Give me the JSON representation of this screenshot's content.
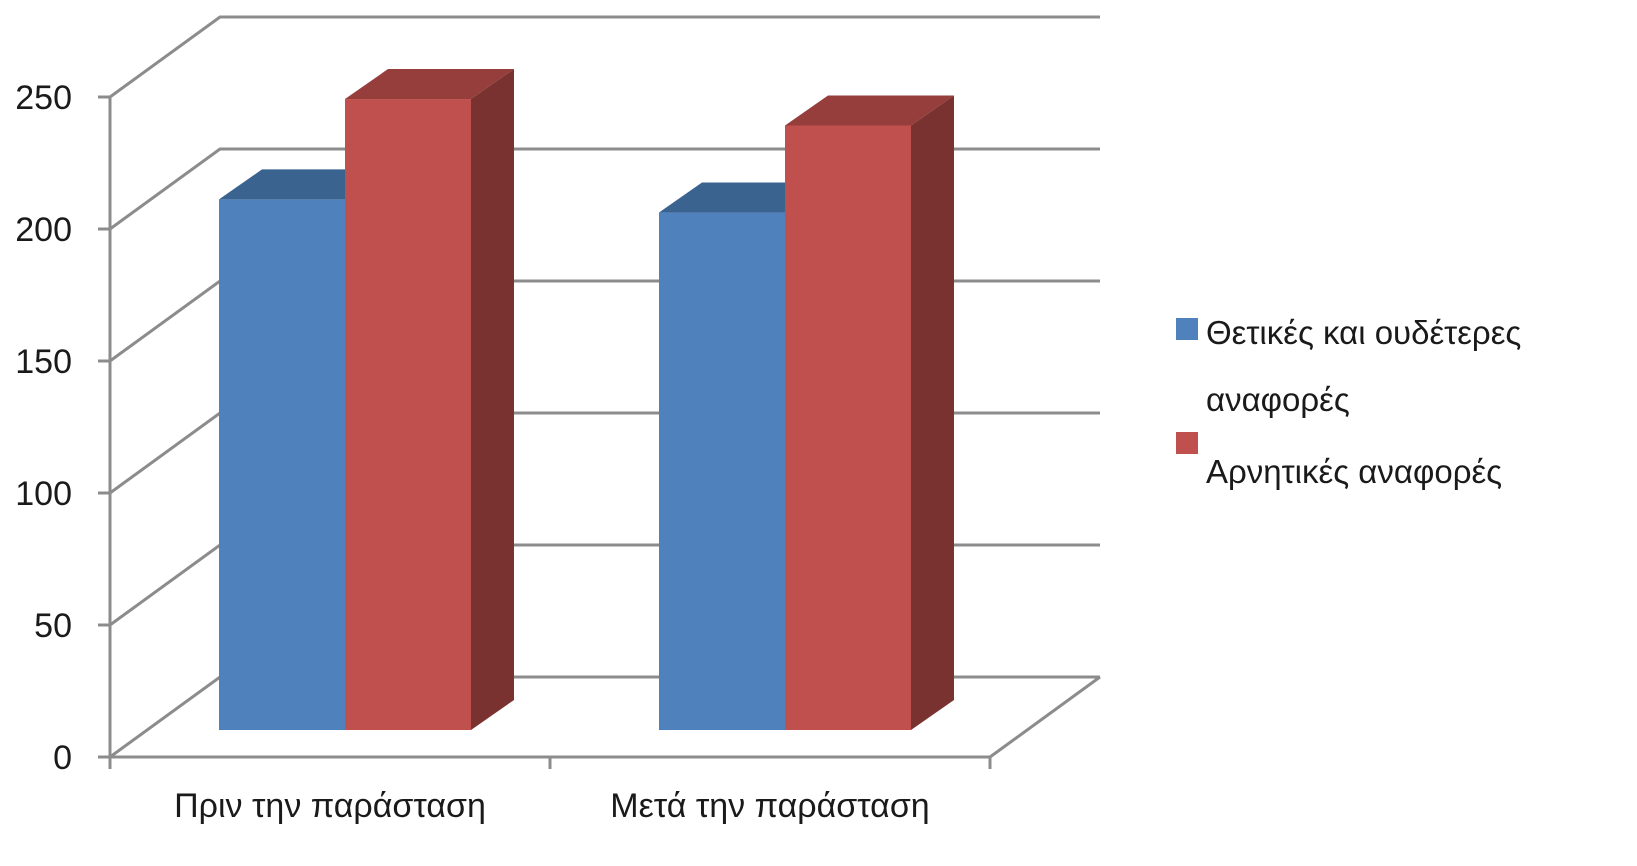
{
  "chart_data": {
    "type": "bar",
    "title": "",
    "xlabel": "",
    "ylabel": "",
    "ylim": [
      0,
      250
    ],
    "yticks": [
      0,
      50,
      100,
      150,
      200,
      250
    ],
    "grid": true,
    "projection": "3d-clustered-column",
    "legend_position": "right",
    "categories": [
      "Πριν την παράσταση",
      "Μετά την παράσταση"
    ],
    "series": [
      {
        "name": "Θετικές και ουδέτερες αναφορές",
        "legend_lines": [
          "Θετικές και ουδέτερες",
          "αναφορές"
        ],
        "values": [
          201,
          196
        ],
        "color": "#4f81bd",
        "top_color": "#3b6390",
        "side_color": "#36587f"
      },
      {
        "name": "Αρνητικές αναφορές",
        "legend_lines": [
          "Αρνητικές αναφορές"
        ],
        "values": [
          239,
          229
        ],
        "color": "#c0504d",
        "top_color": "#963e3c",
        "side_color": "#7a3230"
      }
    ]
  }
}
